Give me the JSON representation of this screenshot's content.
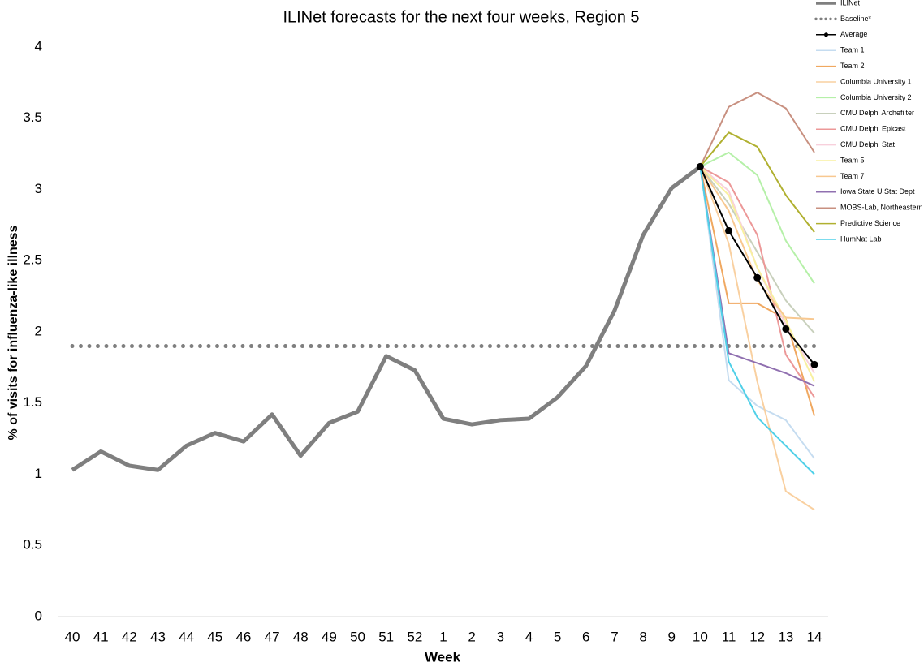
{
  "chart_data": {
    "type": "line",
    "title": "ILINet forecasts for the next four weeks, Region 5",
    "xlabel": "Week",
    "ylabel": "% of visits for influenza-like illness",
    "categories": [
      "40",
      "41",
      "42",
      "43",
      "44",
      "45",
      "46",
      "47",
      "48",
      "49",
      "50",
      "51",
      "52",
      "1",
      "2",
      "3",
      "4",
      "5",
      "6",
      "7",
      "8",
      "9",
      "10",
      "11",
      "12",
      "13",
      "14"
    ],
    "ylim": [
      0,
      4
    ],
    "yticks": [
      0,
      0.5,
      1,
      1.5,
      2,
      2.5,
      3,
      3.5,
      4
    ],
    "series": [
      {
        "name": "ILINet",
        "color": "#7f7f7f",
        "width": 5,
        "values": [
          1.03,
          1.16,
          1.06,
          1.03,
          1.2,
          1.29,
          1.23,
          1.42,
          1.13,
          1.36,
          1.44,
          1.83,
          1.73,
          1.39,
          1.35,
          1.38,
          1.39,
          1.54,
          1.76,
          2.15,
          2.68,
          3.01,
          3.16,
          null,
          null,
          null,
          null
        ]
      },
      {
        "name": "Baseline*",
        "color": "#7f7f7f",
        "width": 5,
        "dotted": true,
        "values": [
          1.9,
          1.9,
          1.9,
          1.9,
          1.9,
          1.9,
          1.9,
          1.9,
          1.9,
          1.9,
          1.9,
          1.9,
          1.9,
          1.9,
          1.9,
          1.9,
          1.9,
          1.9,
          1.9,
          1.9,
          1.9,
          1.9,
          1.9,
          1.9,
          1.9,
          1.9,
          1.9
        ]
      },
      {
        "name": "Average",
        "color": "#000000",
        "width": 2,
        "markers": true,
        "values": [
          null,
          null,
          null,
          null,
          null,
          null,
          null,
          null,
          null,
          null,
          null,
          null,
          null,
          null,
          null,
          null,
          null,
          null,
          null,
          null,
          null,
          null,
          3.16,
          2.71,
          2.38,
          2.02,
          1.77
        ]
      },
      {
        "name": "Team 1",
        "color": "#c5dcf0",
        "width": 2,
        "values": [
          null,
          null,
          null,
          null,
          null,
          null,
          null,
          null,
          null,
          null,
          null,
          null,
          null,
          null,
          null,
          null,
          null,
          null,
          null,
          null,
          null,
          null,
          3.16,
          1.66,
          1.48,
          1.38,
          1.11
        ]
      },
      {
        "name": "Team 2",
        "color": "#f0a860",
        "width": 2,
        "values": [
          null,
          null,
          null,
          null,
          null,
          null,
          null,
          null,
          null,
          null,
          null,
          null,
          null,
          null,
          null,
          null,
          null,
          null,
          null,
          null,
          null,
          null,
          3.16,
          2.2,
          2.2,
          2.09,
          1.41
        ]
      },
      {
        "name": "Columbia University 1",
        "color": "#f9d0a0",
        "width": 2,
        "values": [
          null,
          null,
          null,
          null,
          null,
          null,
          null,
          null,
          null,
          null,
          null,
          null,
          null,
          null,
          null,
          null,
          null,
          null,
          null,
          null,
          null,
          null,
          3.16,
          2.62,
          1.65,
          0.88,
          0.75
        ]
      },
      {
        "name": "Columbia University 2",
        "color": "#b5f0a8",
        "width": 2,
        "values": [
          null,
          null,
          null,
          null,
          null,
          null,
          null,
          null,
          null,
          null,
          null,
          null,
          null,
          null,
          null,
          null,
          null,
          null,
          null,
          null,
          null,
          null,
          3.16,
          3.26,
          3.1,
          2.64,
          2.34
        ]
      },
      {
        "name": "CMU Delphi Archefilter",
        "color": "#c8d0bc",
        "width": 2,
        "values": [
          null,
          null,
          null,
          null,
          null,
          null,
          null,
          null,
          null,
          null,
          null,
          null,
          null,
          null,
          null,
          null,
          null,
          null,
          null,
          null,
          null,
          null,
          3.16,
          2.9,
          2.56,
          2.22,
          1.99
        ]
      },
      {
        "name": "CMU Delphi Epicast",
        "color": "#ec9898",
        "width": 2,
        "values": [
          null,
          null,
          null,
          null,
          null,
          null,
          null,
          null,
          null,
          null,
          null,
          null,
          null,
          null,
          null,
          null,
          null,
          null,
          null,
          null,
          null,
          null,
          3.16,
          3.05,
          2.68,
          1.84,
          1.54
        ]
      },
      {
        "name": "CMU Delphi Stat",
        "color": "#f8d0dc",
        "width": 2,
        "values": [
          null,
          null,
          null,
          null,
          null,
          null,
          null,
          null,
          null,
          null,
          null,
          null,
          null,
          null,
          null,
          null,
          null,
          null,
          null,
          null,
          null,
          null,
          3.16,
          2.99,
          2.45,
          2.05,
          1.71
        ]
      },
      {
        "name": "Team 5",
        "color": "#f8f0a0",
        "width": 2,
        "values": [
          null,
          null,
          null,
          null,
          null,
          null,
          null,
          null,
          null,
          null,
          null,
          null,
          null,
          null,
          null,
          null,
          null,
          null,
          null,
          null,
          null,
          null,
          3.16,
          2.96,
          2.45,
          2.08,
          1.65
        ]
      },
      {
        "name": "Team 7",
        "color": "#f8c890",
        "width": 2,
        "values": [
          null,
          null,
          null,
          null,
          null,
          null,
          null,
          null,
          null,
          null,
          null,
          null,
          null,
          null,
          null,
          null,
          null,
          null,
          null,
          null,
          null,
          null,
          3.16,
          2.85,
          2.36,
          2.1,
          2.09
        ]
      },
      {
        "name": "Iowa State U Stat Dept",
        "color": "#9070b0",
        "width": 2,
        "values": [
          null,
          null,
          null,
          null,
          null,
          null,
          null,
          null,
          null,
          null,
          null,
          null,
          null,
          null,
          null,
          null,
          null,
          null,
          null,
          null,
          null,
          null,
          3.16,
          1.85,
          1.78,
          1.71,
          1.62
        ]
      },
      {
        "name": "MOBS-Lab, Northeastern",
        "color": "#c89080",
        "width": 2,
        "values": [
          null,
          null,
          null,
          null,
          null,
          null,
          null,
          null,
          null,
          null,
          null,
          null,
          null,
          null,
          null,
          null,
          null,
          null,
          null,
          null,
          null,
          null,
          3.16,
          3.58,
          3.68,
          3.57,
          3.26
        ]
      },
      {
        "name": "Predictive Science",
        "color": "#b0b030",
        "width": 2,
        "values": [
          null,
          null,
          null,
          null,
          null,
          null,
          null,
          null,
          null,
          null,
          null,
          null,
          null,
          null,
          null,
          null,
          null,
          null,
          null,
          null,
          null,
          null,
          3.16,
          3.4,
          3.3,
          2.96,
          2.7
        ]
      },
      {
        "name": "HumNat Lab",
        "color": "#50d0e8",
        "width": 2,
        "values": [
          null,
          null,
          null,
          null,
          null,
          null,
          null,
          null,
          null,
          null,
          null,
          null,
          null,
          null,
          null,
          null,
          null,
          null,
          null,
          null,
          null,
          null,
          3.16,
          1.79,
          1.4,
          1.2,
          1.0
        ]
      }
    ]
  }
}
